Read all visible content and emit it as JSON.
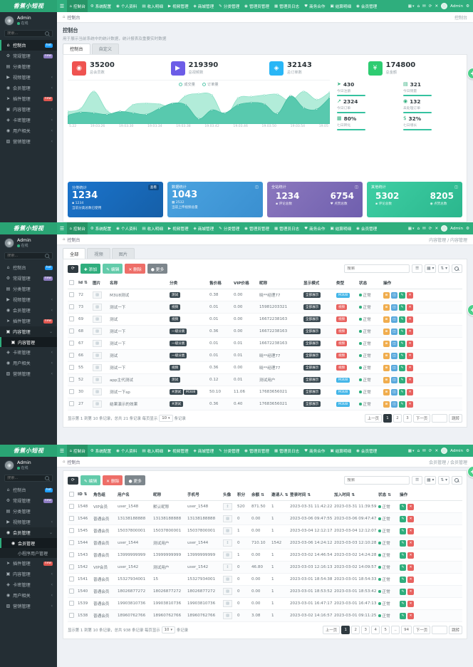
{
  "brand": {
    "logo": "香蕉小短视",
    "accent": "#2fae7d"
  },
  "navbar": {
    "hamburger": "☰",
    "items": [
      {
        "g": "⌂",
        "label": "控制台",
        "cls": "active"
      },
      {
        "g": "⚙",
        "label": "系统配置",
        "cls": ""
      },
      {
        "g": "◉",
        "label": "个人资料",
        "cls": ""
      },
      {
        "g": "▤",
        "label": "收入明细",
        "cls": ""
      },
      {
        "g": "▶",
        "label": "视频管理",
        "cls": ""
      },
      {
        "g": "◈",
        "label": "商城管理",
        "cls": ""
      },
      {
        "g": "✎",
        "label": "分类管理",
        "cls": ""
      },
      {
        "g": "◉",
        "label": "管理员管理",
        "cls": ""
      },
      {
        "g": "▦",
        "label": "管理员日志",
        "cls": ""
      },
      {
        "g": "♥",
        "label": "商务合作",
        "cls": ""
      },
      {
        "g": "▣",
        "label": "结算明细",
        "cls": ""
      },
      {
        "g": "◉",
        "label": "会员管理",
        "cls": ""
      }
    ],
    "apps_icon": "▦",
    "right_icons": [
      {
        "name": "home-icon",
        "glyph": "⌂"
      },
      {
        "name": "message-icon",
        "glyph": "✉"
      },
      {
        "name": "refresh-icon",
        "glyph": "⟳"
      },
      {
        "name": "fullscreen-exit-icon",
        "glyph": "✕"
      }
    ],
    "user": "Admin",
    "settings_glyph": "⚙"
  },
  "sidebar": {
    "user_name": "Admin",
    "user_status": "在线",
    "search_placeholder": "搜索...",
    "p1_items": [
      {
        "g": "⌂",
        "label": "控制台",
        "badge": "hot",
        "bcls": "b-blue",
        "cls": "active"
      },
      {
        "g": "⚙",
        "label": "常规管理",
        "badge": "new",
        "bcls": "b-purple"
      },
      {
        "g": "▤",
        "label": "分类管理"
      },
      {
        "g": "▶",
        "label": "视频管理",
        "chev": "‹"
      },
      {
        "g": "◉",
        "label": "会员管理",
        "chev": "‹"
      },
      {
        "g": "➤",
        "label": "插件管理",
        "badge": "new",
        "bcls": "b-red"
      },
      {
        "g": "▣",
        "label": "内容管理",
        "chev": "‹"
      },
      {
        "g": "◈",
        "label": "卡密管理",
        "chev": "‹"
      },
      {
        "g": "◉",
        "label": "用户相关",
        "chev": "‹"
      },
      {
        "g": "▨",
        "label": "营销管理",
        "chev": "‹"
      }
    ],
    "p2_items": [
      {
        "g": "⌂",
        "label": "控制台",
        "badge": "hot",
        "bcls": "b-blue"
      },
      {
        "g": "⚙",
        "label": "常规管理",
        "badge": "new",
        "bcls": "b-purple"
      },
      {
        "g": "▤",
        "label": "分类管理"
      },
      {
        "g": "▶",
        "label": "视频管理",
        "chev": "‹"
      },
      {
        "g": "◉",
        "label": "会员管理",
        "chev": "‹"
      },
      {
        "g": "➤",
        "label": "插件管理",
        "badge": "new",
        "bcls": "b-red"
      },
      {
        "g": "▣",
        "label": "内容管理",
        "chev": "⌄",
        "cls": "open"
      },
      {
        "g": "▣",
        "label": "内容管理",
        "cls": "sub active"
      },
      {
        "g": "◈",
        "label": "卡密管理",
        "chev": "‹"
      },
      {
        "g": "◉",
        "label": "用户相关",
        "chev": "‹"
      },
      {
        "g": "▨",
        "label": "营销管理",
        "chev": "‹"
      }
    ],
    "p3_items": [
      {
        "g": "⌂",
        "label": "控制台",
        "badge": "hot",
        "bcls": "b-blue"
      },
      {
        "g": "⚙",
        "label": "常规管理",
        "badge": "new",
        "bcls": "b-purple"
      },
      {
        "g": "▤",
        "label": "分类管理"
      },
      {
        "g": "▶",
        "label": "视频管理",
        "chev": "‹"
      },
      {
        "g": "◉",
        "label": "会员管理",
        "chev": "⌄",
        "cls": "open"
      },
      {
        "g": "◉",
        "label": "会员管理",
        "cls": "sub active"
      },
      {
        "g": "",
        "label": "小程序用户管理",
        "cls": "sub"
      },
      {
        "g": "➤",
        "label": "插件管理",
        "badge": "new",
        "bcls": "b-red"
      },
      {
        "g": "▣",
        "label": "内容管理",
        "chev": "‹"
      },
      {
        "g": "◈",
        "label": "卡密管理",
        "chev": "‹"
      },
      {
        "g": "◉",
        "label": "用户相关",
        "chev": "‹"
      },
      {
        "g": "▨",
        "label": "营销管理",
        "chev": "‹"
      }
    ]
  },
  "crumb_home": "控制台",
  "dashboard": {
    "crumb_right": "控制台",
    "title": "控制台",
    "desc": "用于展示当前系统中的统计数据，统计报表及重要实时数据",
    "tabs": [
      {
        "label": "控制台",
        "cls": "active"
      },
      {
        "label": "自定义",
        "cls": ""
      }
    ],
    "stats": [
      {
        "glyph": "◉",
        "color": "#ef5350",
        "value": "35200",
        "label": "总会员数"
      },
      {
        "glyph": "▶",
        "color": "#6c5ce7",
        "value": "219390",
        "label": "总视频数"
      },
      {
        "glyph": "◈",
        "color": "#29b6f6",
        "value": "32143",
        "label": "总订单数"
      },
      {
        "glyph": "¥",
        "color": "#2ecc71",
        "value": "174800",
        "label": "总金额"
      }
    ],
    "mini": [
      {
        "g": "➤",
        "value": "430",
        "label": "今日注册"
      },
      {
        "g": "▤",
        "value": "321",
        "label": "今日销量"
      },
      {
        "g": "↗",
        "value": "2324",
        "label": "今日订单"
      },
      {
        "g": "◉",
        "value": "132",
        "label": "未处理订单"
      },
      {
        "g": "▦",
        "value": "80%",
        "label": "七日转化"
      },
      {
        "g": "$",
        "value": "32%",
        "label": "七日增长"
      }
    ],
    "cards": [
      {
        "title": "分类统计",
        "action": "查看",
        "num": "1234",
        "sub_icon": "▪",
        "sub_num": "1234",
        "sub_text": "当前分类总数已使用"
      },
      {
        "title": "数据统计",
        "corner": "◫",
        "num": "1043",
        "sub_icon": "▦",
        "sub_num": "2532",
        "sub_text": "当前上传视频总量"
      },
      {
        "title": "全站统计",
        "corner": "◫",
        "pairs": [
          {
            "num": "1234",
            "g": "▪",
            "label": "评论总数"
          },
          {
            "num": "6754",
            "g": "♥",
            "label": "点赞总数"
          }
        ]
      },
      {
        "title": "其他统计",
        "corner": "◫",
        "pairs": [
          {
            "num": "5302",
            "g": "▪",
            "label": "评论总数"
          },
          {
            "num": "8205",
            "g": "◉",
            "label": "点赞总数"
          }
        ]
      }
    ]
  },
  "chart_data": {
    "type": "area",
    "title": "",
    "legend": [
      "成交量",
      "订单量"
    ],
    "legend_position": "top",
    "x": [
      "5.22",
      "19.03.26",
      "19.03.30",
      "19.03.34",
      "19.03.38",
      "19.03.42",
      "19.03.46",
      "19.03.50",
      "19.03.54",
      "19.05"
    ],
    "ylim": [
      0,
      100
    ],
    "grid": false,
    "series": [
      {
        "name": "订单量",
        "color": "#b2ecd9",
        "stroke": "#7fdcc0",
        "values": [
          34,
          42,
          88,
          36,
          26,
          52,
          56,
          54,
          46,
          76,
          82,
          78,
          20,
          70,
          74,
          78,
          80,
          62,
          88,
          66,
          86
        ]
      },
      {
        "name": "成交量",
        "color": "#58c9ae",
        "stroke": "#3bb89b",
        "values": [
          24,
          32,
          30,
          26,
          34,
          30,
          26,
          42,
          56,
          52,
          14,
          38,
          30,
          52,
          58,
          54,
          28,
          76,
          44,
          40,
          72
        ]
      }
    ]
  },
  "content_page": {
    "crumb_right": "内容管理 / 内容管理",
    "tabs": [
      {
        "label": "全部",
        "cls": "active"
      },
      {
        "label": "视频",
        "cls": ""
      },
      {
        "label": "图片",
        "cls": ""
      }
    ],
    "toolbar": {
      "refresh": "⟳",
      "add": "✚ 添加",
      "edit": "✎ 编辑",
      "del": "✕ 删除",
      "more": "● 更多"
    },
    "search_placeholder": "搜索",
    "tool_icons": [
      {
        "name": "list-view-icon",
        "glyph": "☰"
      },
      {
        "name": "grid-view-icon",
        "glyph": "▦ ▾"
      },
      {
        "name": "sort-columns-icon",
        "glyph": "⇅ ▾"
      }
    ],
    "columns": [
      "Id ⇅",
      "图片",
      "名称",
      "分类",
      "售价格",
      "VIP价格",
      "昵称",
      "显示模式",
      "类型",
      "状态",
      "操作"
    ],
    "thumb_glyph": "▨",
    "mode_all": "全部展示",
    "status_ok": "正常",
    "ops": [
      {
        "g": "≣",
        "c": "orange",
        "name": "sort-op-icon"
      },
      {
        "g": "◫",
        "c": "blue",
        "name": "detail-op-icon"
      },
      {
        "g": "✎",
        "c": "teal",
        "name": "edit-op-icon"
      },
      {
        "g": "✕",
        "c": "redd",
        "name": "delete-op-icon"
      }
    ],
    "rows": [
      {
        "id": "72",
        "name": "M3U8测试",
        "cats": [
          "测试"
        ],
        "price": "0.38",
        "vip": "0.00",
        "nick": "晓**经理77",
        "type": "M3U8",
        "tc": "blue"
      },
      {
        "id": "73",
        "name": "测试一下",
        "cats": [
          "视频"
        ],
        "price": "0.01",
        "vip": "0.00",
        "nick": "15981203321",
        "type": "视频",
        "tc": "red"
      },
      {
        "id": "69",
        "name": "测试",
        "cats": [
          "视频"
        ],
        "price": "0.01",
        "vip": "0.00",
        "nick": "16672238163",
        "type": "视频",
        "tc": "red"
      },
      {
        "id": "68",
        "name": "测试一下",
        "cats": [
          "一级分类"
        ],
        "price": "0.36",
        "vip": "0.00",
        "nick": "16672238163",
        "type": "视频",
        "tc": "red"
      },
      {
        "id": "67",
        "name": "测试一下",
        "cats": [
          "一级分类"
        ],
        "price": "0.01",
        "vip": "0.01",
        "nick": "16672238163",
        "type": "视频",
        "tc": "red"
      },
      {
        "id": "66",
        "name": "测试",
        "cats": [
          "一级分类"
        ],
        "price": "0.01",
        "vip": "0.01",
        "nick": "晓**经理77",
        "type": "视频",
        "tc": "red"
      },
      {
        "id": "55",
        "name": "测试一下",
        "cats": [
          "视频"
        ],
        "price": "0.36",
        "vip": "0.00",
        "nick": "晓**经理77",
        "type": "视频",
        "tc": "red"
      },
      {
        "id": "52",
        "name": "app主代测试",
        "cats": [
          "测试"
        ],
        "price": "0.12",
        "vip": "0.01",
        "nick": "测试用户",
        "type": "M3U8",
        "tc": "blue"
      },
      {
        "id": "30",
        "name": "测试一下sp",
        "cats": [
          "#测试",
          "M3U8"
        ],
        "price": "50.10",
        "vip": "11.06",
        "nick": "17683656021",
        "type": "M3U8",
        "tc": "blue"
      },
      {
        "id": "27",
        "name": "结果演示的效果",
        "cats": [
          "#测试"
        ],
        "price": "0.36",
        "vip": "0.40",
        "nick": "17683656021",
        "type": "M3U8",
        "tc": "blue"
      }
    ],
    "footer": {
      "summary_prefix": "显示第 1 到第 10 条记录，总共 21 条记录 每页显示",
      "page_size": "10",
      "summary_suffix": "条记录",
      "prev": "上一页",
      "pages": [
        {
          "t": "1",
          "cls": "active"
        },
        {
          "t": "2",
          "cls": ""
        },
        {
          "t": "3",
          "cls": ""
        }
      ],
      "next": "下一页",
      "jump": "跳转"
    }
  },
  "member_page": {
    "crumb_right": "会员管理 / 会员管理",
    "toolbar": {
      "refresh": "⟳",
      "edit": "✎ 编辑",
      "del": "✕ 删除",
      "more": "● 更多"
    },
    "search_placeholder": "搜索",
    "tool_icons": [
      {
        "name": "list-view-icon",
        "glyph": "☰"
      },
      {
        "name": "grid-view-icon",
        "glyph": "▦ ▾"
      },
      {
        "name": "sort-columns-icon",
        "glyph": "⇅ ▾"
      }
    ],
    "columns": [
      "ID ⇅",
      "角色组",
      "用户名",
      "昵称",
      "手机号",
      "头像",
      "积分",
      "余额 ⇅",
      "邀请人 ⇅",
      "登录时间 ⇅",
      "加入时间 ⇅",
      "状态 ⇅",
      "操作"
    ],
    "status_ok": "正常",
    "ops": [
      {
        "g": "✎",
        "c": "teal",
        "name": "edit-op-icon"
      },
      {
        "g": "✕",
        "c": "redd",
        "name": "delete-op-icon"
      }
    ],
    "rows": [
      {
        "id": "1548",
        "role": "VIP会员",
        "username": "user_1548",
        "nick": "默认昵称",
        "phone": "user_1548",
        "avatar": "↥",
        "points": "520",
        "balance": "871.50",
        "inviter": "1",
        "login": "2023-03-31 11:42:22",
        "join": "2023-03-31 11:39:59"
      },
      {
        "id": "1546",
        "role": "普通会员",
        "username": "13138188888",
        "nick": "13138188888",
        "phone": "13138188888",
        "avatar": "▨",
        "points": "0",
        "balance": "0.00",
        "inviter": "1",
        "login": "2023-03-06 09:47:55",
        "join": "2023-03-06 09:47:47"
      },
      {
        "id": "1545",
        "role": "普通会员",
        "username": "15037800001",
        "nick": "15037800001",
        "phone": "15037800001",
        "avatar": "▨",
        "points": "1",
        "balance": "0.00",
        "inviter": "1",
        "login": "2023-03-04 12:12:17",
        "join": "2023-03-04 12:12:07"
      },
      {
        "id": "1544",
        "role": "普通会员",
        "username": "user_1544",
        "nick": "测试用户",
        "phone": "user_1544",
        "avatar": "↥",
        "points": "0",
        "balance": "710.10",
        "inviter": "1542",
        "login": "2023-03-06 14:24:12",
        "join": "2023-03-03 12:10:28"
      },
      {
        "id": "1543",
        "role": "普通会员",
        "username": "13999999999",
        "nick": "13999999999",
        "phone": "13999999999",
        "avatar": "▨",
        "points": "1",
        "balance": "0.00",
        "inviter": "1",
        "login": "2023-03-02 14:46:54",
        "join": "2023-03-02 14:24:28"
      },
      {
        "id": "1542",
        "role": "VIP会员",
        "username": "user_1542",
        "nick": "测试用户",
        "phone": "user_1542",
        "avatar": "↥",
        "points": "0",
        "balance": "46.80",
        "inviter": "1",
        "login": "2023-03-03 12:16:13",
        "join": "2023-03-02 14:09:57"
      },
      {
        "id": "1541",
        "role": "普通会员",
        "username": "15327934001",
        "nick": "15",
        "phone": "15327934001",
        "avatar": "▨",
        "points": "0",
        "balance": "0.00",
        "inviter": "1",
        "login": "2023-03-01 18:54:38",
        "join": "2023-03-01 18:54:33"
      },
      {
        "id": "1540",
        "role": "普通会员",
        "username": "18026877272",
        "nick": "18026877272",
        "phone": "18026877272",
        "avatar": "▨",
        "points": "0",
        "balance": "0.00",
        "inviter": "1",
        "login": "2023-03-01 18:53:52",
        "join": "2023-03-01 18:53:42"
      },
      {
        "id": "1539",
        "role": "普通会员",
        "username": "19903810736",
        "nick": "19903810736",
        "phone": "19903810736",
        "avatar": "▨",
        "points": "0",
        "balance": "0.00",
        "inviter": "1",
        "login": "2023-03-01 16:47:17",
        "join": "2023-03-01 16:47:13"
      },
      {
        "id": "1538",
        "role": "普通会员",
        "username": "18960762766",
        "nick": "18960762766",
        "phone": "18960762766",
        "avatar": "▨",
        "points": "0",
        "balance": "3.08",
        "inviter": "1",
        "login": "2023-03-02 14:16:57",
        "join": "2023-03-01 09:11:25"
      }
    ],
    "footer": {
      "summary_prefix": "显示第 1 到第 10 条记录，总共 938 条记录 每页显示",
      "page_size": "10",
      "summary_suffix": "条记录",
      "prev": "上一页",
      "pages": [
        {
          "t": "1",
          "cls": "active"
        },
        {
          "t": "2",
          "cls": ""
        },
        {
          "t": "3",
          "cls": ""
        },
        {
          "t": "4",
          "cls": ""
        },
        {
          "t": "5",
          "cls": ""
        },
        {
          "t": "..",
          "cls": ""
        },
        {
          "t": "94",
          "cls": ""
        }
      ],
      "next": "下一页",
      "jump": "跳转"
    }
  }
}
